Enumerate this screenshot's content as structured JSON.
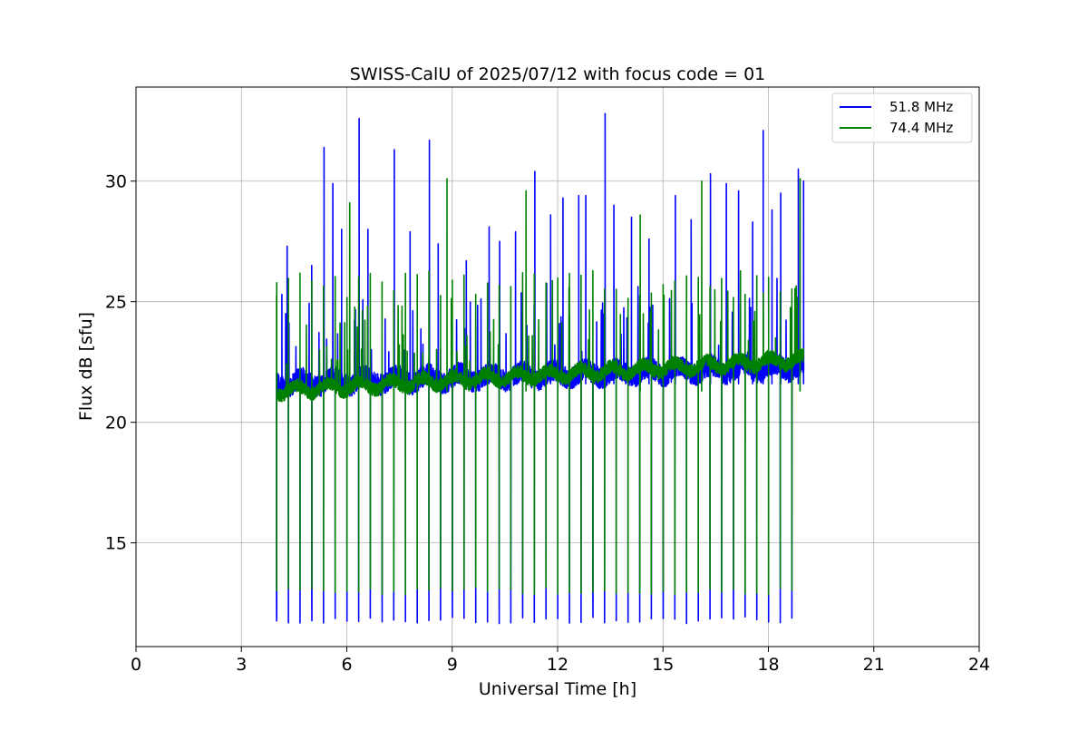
{
  "chart_data": {
    "type": "line",
    "title": "SWISS-CalU of 2025/07/12 with focus code = 01",
    "xlabel": "Universal Time [h]",
    "ylabel": "Flux dB [sfu]",
    "xlim": [
      0,
      24
    ],
    "ylim": [
      10.7,
      33.9
    ],
    "xticks": [
      0,
      3,
      6,
      9,
      12,
      15,
      18,
      21,
      24
    ],
    "yticks": [
      15,
      20,
      25,
      30
    ],
    "grid": true,
    "legend_position": "top-right",
    "time_range": [
      4.0,
      19.0
    ],
    "series": [
      {
        "name": "51.8 MHz",
        "color": "#0000ff",
        "baseline_start": 21.6,
        "baseline_end": 22.3,
        "calibration_low": 11.8,
        "calibration_high": 12.8,
        "peaks": [
          {
            "x": 4.15,
            "y": 25.3
          },
          {
            "x": 4.3,
            "y": 27.3
          },
          {
            "x": 5.0,
            "y": 26.5
          },
          {
            "x": 5.35,
            "y": 31.4
          },
          {
            "x": 5.6,
            "y": 29.9
          },
          {
            "x": 5.85,
            "y": 28.0
          },
          {
            "x": 6.35,
            "y": 32.6
          },
          {
            "x": 6.6,
            "y": 28.0
          },
          {
            "x": 7.35,
            "y": 31.3
          },
          {
            "x": 7.8,
            "y": 27.9
          },
          {
            "x": 8.35,
            "y": 31.7
          },
          {
            "x": 8.6,
            "y": 27.4
          },
          {
            "x": 9.4,
            "y": 26.7
          },
          {
            "x": 10.05,
            "y": 28.1
          },
          {
            "x": 10.35,
            "y": 27.5
          },
          {
            "x": 10.8,
            "y": 27.9
          },
          {
            "x": 11.35,
            "y": 30.4
          },
          {
            "x": 11.8,
            "y": 28.6
          },
          {
            "x": 12.15,
            "y": 29.3
          },
          {
            "x": 12.6,
            "y": 29.4
          },
          {
            "x": 12.8,
            "y": 29.4
          },
          {
            "x": 13.35,
            "y": 32.8
          },
          {
            "x": 13.6,
            "y": 29.0
          },
          {
            "x": 14.1,
            "y": 28.5
          },
          {
            "x": 14.6,
            "y": 27.6
          },
          {
            "x": 15.35,
            "y": 29.4
          },
          {
            "x": 15.8,
            "y": 28.4
          },
          {
            "x": 16.35,
            "y": 30.3
          },
          {
            "x": 16.8,
            "y": 29.9
          },
          {
            "x": 17.15,
            "y": 29.6
          },
          {
            "x": 17.55,
            "y": 28.3
          },
          {
            "x": 17.85,
            "y": 32.1
          },
          {
            "x": 18.1,
            "y": 28.8
          },
          {
            "x": 18.35,
            "y": 29.5
          },
          {
            "x": 18.85,
            "y": 30.5
          },
          {
            "x": 19.0,
            "y": 30.0
          }
        ]
      },
      {
        "name": "74.4 MHz",
        "color": "#008000",
        "baseline_start": 21.3,
        "baseline_end": 22.6,
        "calibration_low": 13.0,
        "calibration_high": 25.7,
        "peaks": [
          {
            "x": 6.08,
            "y": 29.1
          },
          {
            "x": 8.85,
            "y": 30.1
          },
          {
            "x": 11.1,
            "y": 29.6
          },
          {
            "x": 14.35,
            "y": 28.6
          },
          {
            "x": 16.1,
            "y": 30.0
          },
          {
            "x": 18.9,
            "y": 30.1
          }
        ]
      }
    ]
  }
}
